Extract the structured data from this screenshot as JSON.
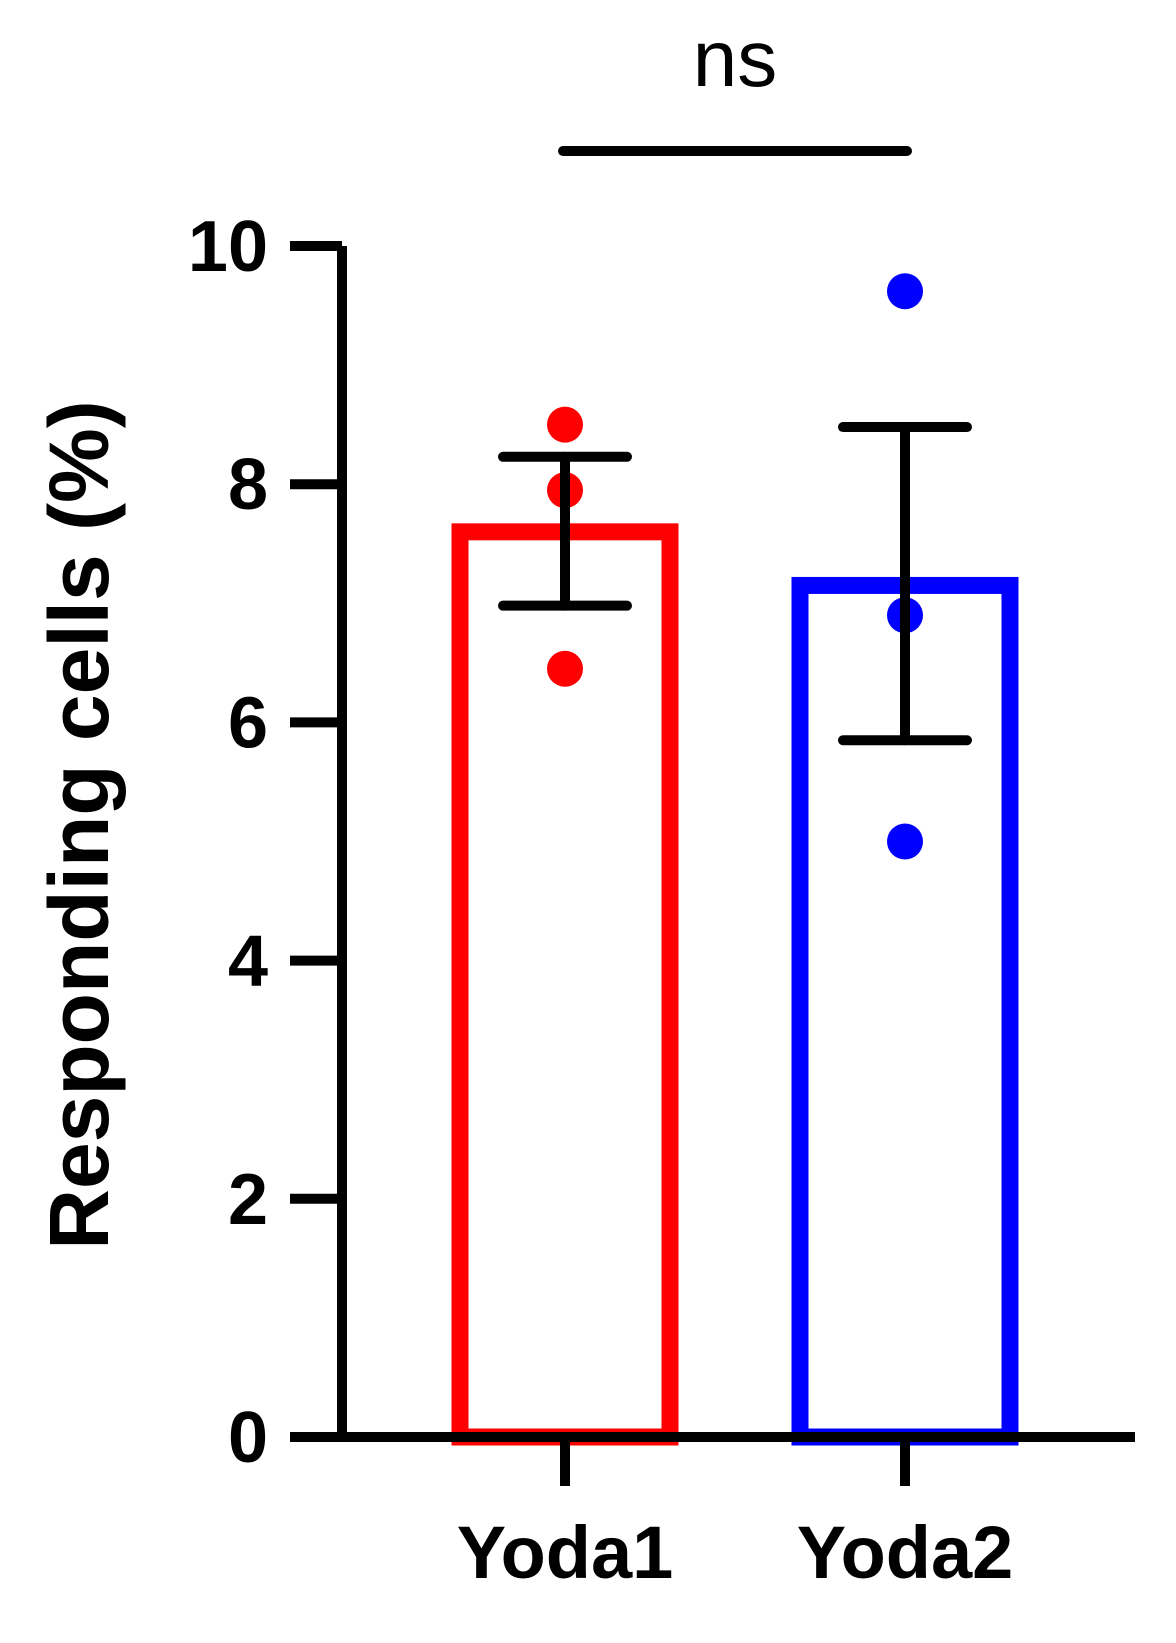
{
  "chart_data": {
    "type": "bar",
    "ylabel": "Responding cells (%)",
    "xlabel": "",
    "ylim": [
      0,
      10
    ],
    "yticks": [
      0,
      2,
      4,
      6,
      8,
      10
    ],
    "yticks_labels": [
      "0",
      "2",
      "4",
      "6",
      "8",
      "10"
    ],
    "grid": false,
    "categories": [
      "Yoda1",
      "Yoda2"
    ],
    "colors": [
      "#ff0000",
      "#0000ff"
    ],
    "axis_color": "#000000",
    "bar_style": "outline",
    "values": [
      7.6,
      7.15
    ],
    "error": [
      {
        "lower": 6.98,
        "upper": 8.23
      },
      {
        "lower": 5.85,
        "upper": 8.48
      }
    ],
    "points": [
      [
        8.5,
        7.95,
        6.45
      ],
      [
        9.62,
        6.9,
        5.0
      ]
    ],
    "significance": {
      "label": "ns",
      "between": [
        "Yoda1",
        "Yoda2"
      ]
    }
  }
}
